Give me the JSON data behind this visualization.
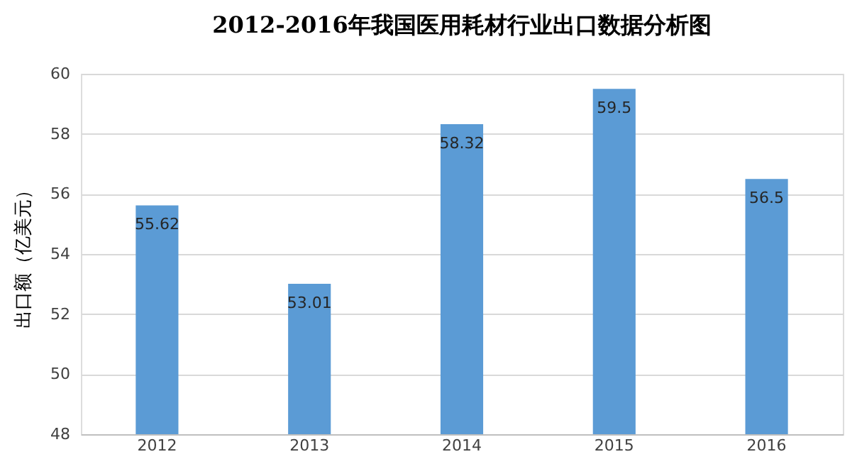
{
  "chart_data": {
    "type": "bar",
    "title": "2012-2016年我国医用耗材行业出口数据分析图",
    "ylabel": "出口额（亿美元）",
    "categories": [
      "2012",
      "2013",
      "2014",
      "2015",
      "2016"
    ],
    "values": [
      55.62,
      53.01,
      58.32,
      59.5,
      56.5
    ],
    "color": "#5b9bd5",
    "ylim": [
      48,
      60
    ],
    "yticks": [
      48,
      50,
      52,
      54,
      56,
      58,
      60
    ],
    "grid": "y",
    "data_labels": true
  }
}
